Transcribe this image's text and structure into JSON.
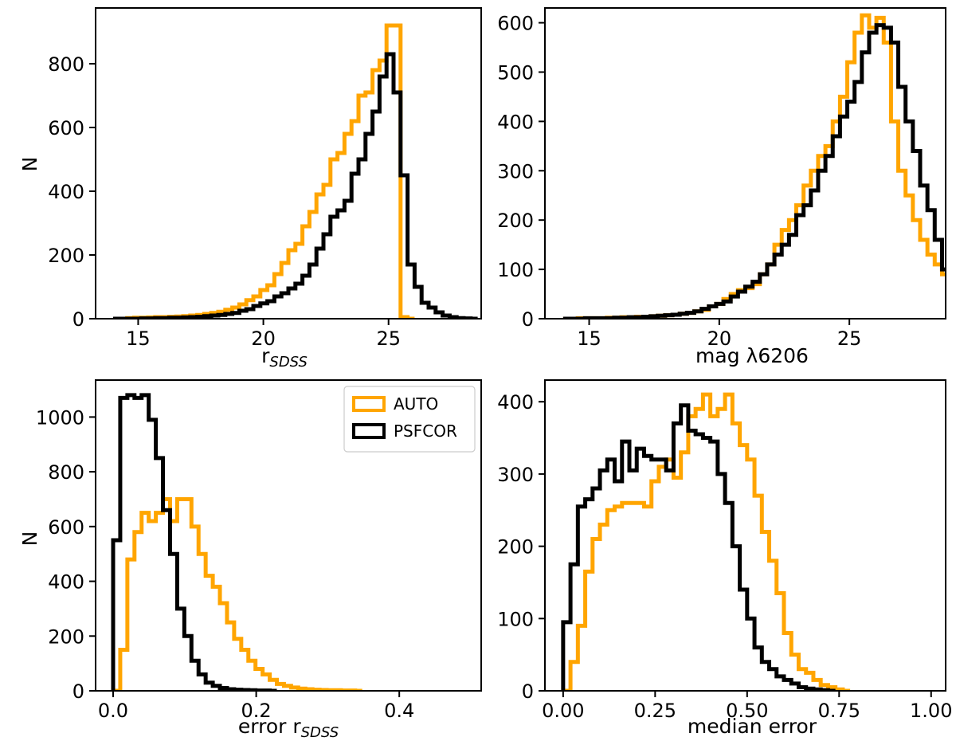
{
  "colors": {
    "auto": "#ffa500",
    "psfcor": "#000000"
  },
  "chart_data": [
    {
      "type": "histogram",
      "id": "r-sdss",
      "xlabel": "r",
      "xlabel_sub": "SDSS",
      "ylabel": "N",
      "xlim": [
        13.3,
        28.7
      ],
      "ylim": [
        0,
        975
      ],
      "xticks": [
        15,
        20,
        25
      ],
      "yticks": [
        0,
        200,
        400,
        600,
        800
      ],
      "bin_start": 14.0,
      "bin_width": 0.28,
      "series": [
        {
          "name": "AUTO",
          "values": [
            0,
            0,
            2,
            3,
            3,
            4,
            5,
            5,
            6,
            7,
            8,
            10,
            12,
            15,
            18,
            22,
            28,
            35,
            45,
            58,
            70,
            90,
            105,
            140,
            175,
            215,
            235,
            290,
            335,
            390,
            420,
            500,
            520,
            580,
            620,
            700,
            710,
            780,
            810,
            920,
            920,
            5,
            0,
            0,
            0,
            0,
            0,
            0,
            0,
            0
          ]
        },
        {
          "name": "PSFCOR",
          "values": [
            0,
            0,
            0,
            0,
            1,
            1,
            2,
            2,
            3,
            3,
            4,
            5,
            6,
            8,
            10,
            12,
            15,
            18,
            25,
            30,
            40,
            48,
            55,
            70,
            80,
            95,
            110,
            135,
            170,
            220,
            265,
            320,
            340,
            370,
            455,
            500,
            580,
            650,
            760,
            830,
            710,
            450,
            170,
            100,
            50,
            35,
            20,
            10,
            5,
            2,
            1,
            0,
            0,
            0,
            0,
            0,
            0,
            0,
            0,
            0,
            0,
            0,
            0,
            0,
            0,
            0,
            0,
            0,
            0,
            0,
            0,
            0,
            0,
            0,
            0,
            0,
            0,
            0,
            0,
            0,
            0,
            0,
            0,
            0,
            0,
            0,
            0,
            0,
            0,
            0,
            0,
            0,
            0,
            0,
            0,
            0,
            0,
            0,
            0,
            0
          ]
        }
      ]
    },
    {
      "type": "histogram",
      "id": "mag-6206",
      "xlabel": "mag λ6206",
      "ylabel": "",
      "xlim": [
        13.3,
        28.7
      ],
      "ylim": [
        0,
        630
      ],
      "xticks": [
        15,
        20,
        25
      ],
      "yticks": [
        0,
        100,
        200,
        300,
        400,
        500,
        600
      ],
      "bin_start": 14.0,
      "bin_width": 0.28,
      "series": [
        {
          "name": "AUTO",
          "values": [
            0,
            0,
            1,
            1,
            1,
            1,
            2,
            2,
            3,
            3,
            4,
            4,
            5,
            6,
            7,
            8,
            10,
            12,
            15,
            18,
            25,
            30,
            40,
            50,
            58,
            62,
            70,
            90,
            110,
            150,
            180,
            200,
            230,
            270,
            300,
            330,
            350,
            400,
            450,
            520,
            580,
            615,
            590,
            610,
            560,
            400,
            300,
            250,
            200,
            160,
            130,
            110,
            90,
            65,
            45,
            35,
            25,
            20,
            18,
            12,
            10,
            8,
            6,
            5,
            4,
            3,
            2,
            2,
            1,
            1,
            0,
            0,
            0,
            0,
            0,
            0,
            0,
            0,
            0,
            0,
            0,
            0,
            0,
            0,
            0,
            0,
            0,
            0,
            0,
            0,
            0,
            0,
            0,
            0,
            0,
            0,
            0,
            0,
            0,
            0
          ]
        },
        {
          "name": "PSFCOR",
          "values": [
            0,
            0,
            0,
            1,
            1,
            1,
            1,
            2,
            2,
            3,
            3,
            4,
            5,
            6,
            7,
            8,
            10,
            12,
            15,
            20,
            25,
            30,
            35,
            45,
            55,
            65,
            75,
            90,
            110,
            130,
            150,
            170,
            210,
            230,
            260,
            300,
            330,
            370,
            410,
            440,
            480,
            540,
            580,
            595,
            590,
            560,
            470,
            400,
            340,
            270,
            220,
            160,
            100,
            65,
            45,
            35,
            25,
            20,
            15,
            12,
            10,
            8,
            6,
            5,
            4,
            3,
            2,
            2,
            1,
            1,
            1,
            0,
            0,
            0,
            0,
            0,
            0,
            0,
            0,
            0,
            0,
            0,
            0,
            0,
            0,
            0,
            0,
            0,
            0,
            0,
            0,
            0,
            0,
            0,
            0,
            0,
            0,
            0,
            0,
            0
          ]
        }
      ]
    },
    {
      "type": "histogram",
      "id": "error-r-sdss",
      "xlabel": "error r",
      "xlabel_sub": "SDSS",
      "ylabel": "N",
      "xlim": [
        -0.0245,
        0.5145
      ],
      "ylim": [
        0,
        1135
      ],
      "xticks": [
        0.0,
        0.2,
        0.4
      ],
      "xtick_labels": [
        "0.0",
        "0.2",
        "0.4"
      ],
      "yticks": [
        0,
        200,
        400,
        600,
        800,
        1000
      ],
      "bin_start": 0.0,
      "bin_width": 0.00995,
      "series": [
        {
          "name": "AUTO",
          "values": [
            0,
            150,
            480,
            580,
            650,
            620,
            650,
            700,
            620,
            700,
            700,
            600,
            500,
            420,
            380,
            320,
            250,
            190,
            150,
            110,
            80,
            60,
            40,
            25,
            18,
            12,
            8,
            6,
            4,
            3,
            2,
            2,
            1,
            1,
            0,
            0,
            0,
            0,
            0,
            0,
            0,
            0,
            0,
            0,
            0,
            0,
            0,
            0,
            0,
            0
          ]
        },
        {
          "name": "PSFCOR",
          "values": [
            550,
            1070,
            1080,
            1070,
            1080,
            990,
            850,
            660,
            500,
            300,
            200,
            110,
            60,
            30,
            18,
            10,
            6,
            4,
            3,
            2,
            1,
            1,
            0,
            0,
            0,
            0,
            0,
            0,
            0,
            0,
            0,
            0,
            0,
            0,
            0,
            0,
            0,
            0,
            0,
            0,
            0,
            0,
            0,
            0,
            0,
            0,
            0,
            0,
            0,
            0
          ]
        }
      ],
      "legend": {
        "position": "top-right",
        "entries": [
          "AUTO",
          "PSFCOR"
        ]
      }
    },
    {
      "type": "histogram",
      "id": "median-error",
      "xlabel": "median error",
      "ylabel": "",
      "xlim": [
        -0.0495,
        1.0395
      ],
      "ylim": [
        0,
        430
      ],
      "xticks": [
        0.0,
        0.25,
        0.5,
        0.75,
        1.0
      ],
      "xtick_labels": [
        "0.00",
        "0.25",
        "0.50",
        "0.75",
        "1.00"
      ],
      "yticks": [
        0,
        100,
        200,
        300,
        400
      ],
      "bin_start": 0.0,
      "bin_width": 0.02,
      "series": [
        {
          "name": "AUTO",
          "values": [
            0,
            40,
            90,
            165,
            210,
            230,
            250,
            255,
            260,
            260,
            260,
            255,
            290,
            310,
            320,
            295,
            330,
            380,
            390,
            410,
            380,
            390,
            410,
            370,
            340,
            320,
            270,
            220,
            180,
            135,
            80,
            50,
            30,
            25,
            15,
            8,
            5,
            2,
            0,
            0,
            0,
            0,
            0,
            0,
            0,
            0,
            0,
            0,
            0,
            0
          ]
        },
        {
          "name": "PSFCOR",
          "values": [
            95,
            175,
            255,
            265,
            280,
            305,
            320,
            290,
            345,
            305,
            335,
            325,
            320,
            320,
            305,
            370,
            395,
            360,
            355,
            350,
            345,
            300,
            260,
            200,
            140,
            100,
            60,
            40,
            30,
            20,
            15,
            10,
            5,
            3,
            2,
            1,
            0,
            0,
            0,
            0,
            0,
            0,
            0,
            0,
            0,
            0,
            0,
            0,
            0,
            0
          ]
        }
      ]
    }
  ]
}
